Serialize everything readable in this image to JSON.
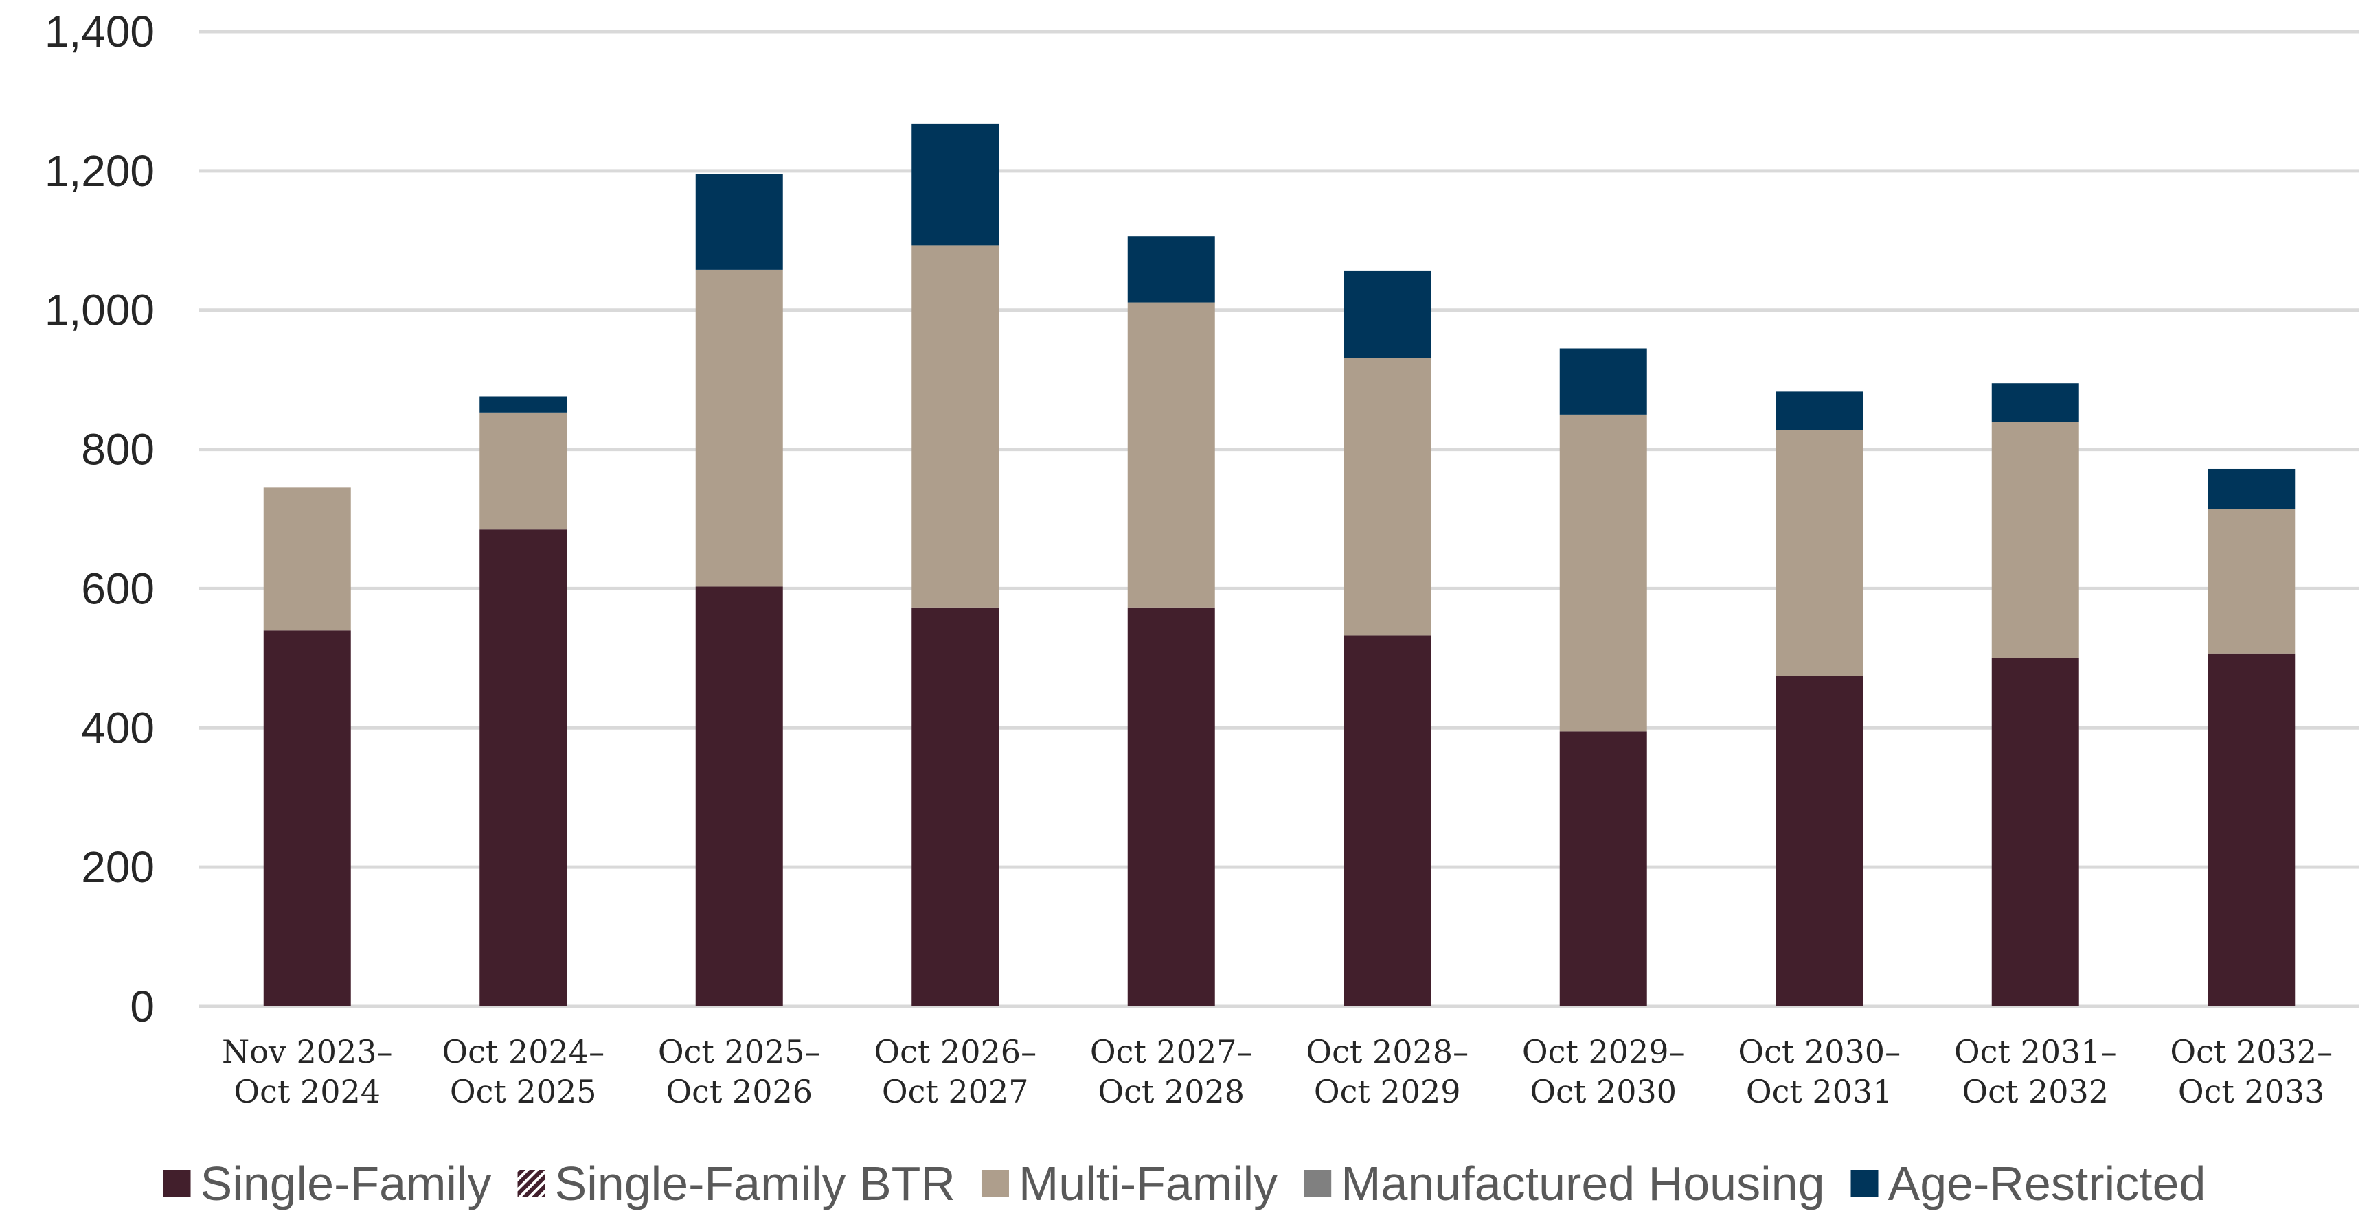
{
  "chart_data": {
    "type": "bar",
    "stacked": true,
    "title": "",
    "xlabel": "",
    "ylabel": "",
    "ylim": [
      0,
      1400
    ],
    "yticks": [
      0,
      200,
      400,
      600,
      800,
      1000,
      1200,
      1400
    ],
    "ytick_labels": [
      "0",
      "200",
      "400",
      "600",
      "800",
      "1,000",
      "1,200",
      "1,400"
    ],
    "grid": "horizontal",
    "legend_position": "bottom",
    "categories": [
      [
        "Nov 2023–",
        "Oct 2024"
      ],
      [
        "Oct 2024–",
        "Oct 2025"
      ],
      [
        "Oct 2025–",
        "Oct 2026"
      ],
      [
        "Oct 2026–",
        "Oct 2027"
      ],
      [
        "Oct 2027–",
        "Oct 2028"
      ],
      [
        "Oct 2028–",
        "Oct 2029"
      ],
      [
        "Oct 2029–",
        "Oct 2030"
      ],
      [
        "Oct 2030–",
        "Oct 2031"
      ],
      [
        "Oct 2031–",
        "Oct 2032"
      ],
      [
        "Oct 2032–",
        "Oct 2033"
      ]
    ],
    "series": [
      {
        "name": "Single-Family",
        "color": "#421f2c",
        "pattern": "solid",
        "values": [
          540,
          685,
          603,
          573,
          573,
          533,
          395,
          475,
          500,
          507
        ]
      },
      {
        "name": "Single-Family BTR",
        "color": "#421f2c",
        "pattern": "hatched",
        "values": [
          0,
          0,
          0,
          0,
          0,
          0,
          0,
          0,
          0,
          0
        ]
      },
      {
        "name": "Multi-Family",
        "color": "#ae9e8c",
        "pattern": "solid",
        "values": [
          205,
          168,
          455,
          520,
          438,
          398,
          455,
          353,
          340,
          207
        ]
      },
      {
        "name": "Manufactured Housing",
        "color": "#808080",
        "pattern": "solid",
        "values": [
          0,
          0,
          0,
          0,
          0,
          0,
          0,
          0,
          0,
          0
        ]
      },
      {
        "name": "Age-Restricted",
        "color": "#00355a",
        "pattern": "solid",
        "values": [
          0,
          23,
          137,
          175,
          95,
          125,
          95,
          55,
          55,
          58
        ]
      }
    ]
  }
}
